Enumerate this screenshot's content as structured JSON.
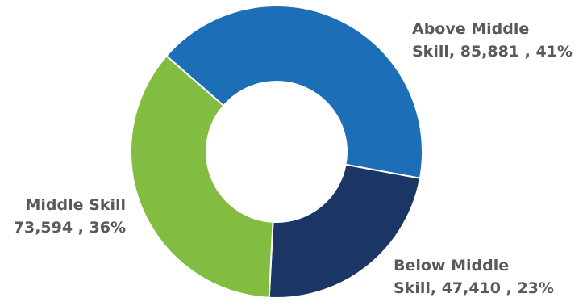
{
  "chart_data": {
    "type": "pie",
    "variant": "donut",
    "slices": [
      {
        "label_line1": "Above Middle",
        "label_line2": "Skill, 85,881 , 41%",
        "category": "Above Middle Skill",
        "value": 85881,
        "percent": 41,
        "color": "#1C6EB7"
      },
      {
        "label_line1": "Below Middle",
        "label_line2": "Skill, 47,410 , 23%",
        "category": "Below Middle Skill",
        "value": 47410,
        "percent": 23,
        "color": "#1B3564"
      },
      {
        "label_line1": "Middle Skill",
        "label_line2": "73,594 , 36%",
        "category": "Middle Skill",
        "value": 73594,
        "percent": 36,
        "color": "#82BC41"
      }
    ],
    "legend": "none",
    "label_color": "#595959"
  }
}
